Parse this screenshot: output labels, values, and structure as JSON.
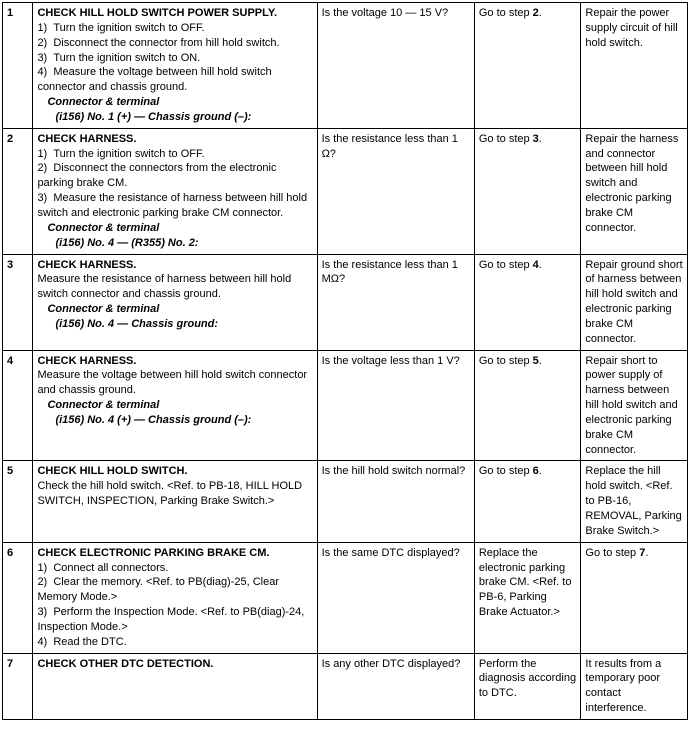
{
  "rows": [
    {
      "num": "1",
      "title": "CHECK HILL HOLD SWITCH POWER SUPPLY.",
      "steps": [
        "1)  Turn the ignition switch to OFF.",
        "2)  Disconnect the connector from hill hold switch.",
        "3)  Turn the ignition switch to ON.",
        "4)  Measure the voltage between hill hold switch connector and chassis ground."
      ],
      "conn_label": "Connector & terminal",
      "conn_detail": "(i156) No. 1 (+) — Chassis ground (–):",
      "check": "Is the voltage 10 — 15 V?",
      "yes": "Go to step 2.",
      "no": "Repair the power supply circuit of hill hold switch."
    },
    {
      "num": "2",
      "title": "CHECK HARNESS.",
      "steps": [
        "1)  Turn the ignition switch to OFF.",
        "2)  Disconnect the connectors from the electronic parking brake CM.",
        "3)  Measure the resistance of harness between hill hold switch and electronic parking brake CM connector."
      ],
      "conn_label": "Connector & terminal",
      "conn_detail": "(i156) No. 4 — (R355) No. 2:",
      "check": "Is the resistance less than 1 Ω?",
      "yes": "Go to step 3.",
      "no": "Repair the harness and connector between hill hold switch and electronic parking brake CM connector."
    },
    {
      "num": "3",
      "title": "CHECK HARNESS.",
      "steps": [
        "Measure the resistance of harness between hill hold switch connector and chassis ground."
      ],
      "conn_label": "Connector & terminal",
      "conn_detail": "(i156) No. 4 — Chassis ground:",
      "check": "Is the resistance less than 1 MΩ?",
      "yes": "Go to step 4.",
      "no": "Repair ground short of harness between hill hold switch and electronic parking brake CM connector."
    },
    {
      "num": "4",
      "title": "CHECK HARNESS.",
      "steps": [
        "Measure the voltage between hill hold switch connector and chassis ground."
      ],
      "conn_label": "Connector & terminal",
      "conn_detail": "(i156) No. 4 (+) — Chassis ground (–):",
      "check": "Is the voltage less than 1 V?",
      "yes": "Go to step 5.",
      "no": "Repair short to power supply of harness between hill hold switch and electronic parking brake CM connector."
    },
    {
      "num": "5",
      "title": "CHECK HILL HOLD SWITCH.",
      "steps": [
        "Check the hill hold switch. <Ref. to PB-18, HILL HOLD SWITCH, INSPECTION, Parking Brake Switch.>"
      ],
      "conn_label": "",
      "conn_detail": "",
      "check": "Is the hill hold switch normal?",
      "yes": "Go to step 6.",
      "no": "Replace the hill hold switch. <Ref. to PB-16, REMOVAL, Parking Brake Switch.>"
    },
    {
      "num": "6",
      "title": "CHECK ELECTRONIC PARKING BRAKE CM.",
      "steps": [
        "1)  Connect all connectors.",
        "2)  Clear the memory. <Ref. to PB(diag)-25, Clear Memory Mode.>",
        "3)  Perform the Inspection Mode. <Ref. to PB(diag)-24, Inspection Mode.>",
        "4)  Read the DTC."
      ],
      "conn_label": "",
      "conn_detail": "",
      "check": "Is the same DTC displayed?",
      "yes": "Replace the electronic parking brake CM. <Ref. to PB-6, Parking Brake Actuator.>",
      "no": "Go to step 7."
    },
    {
      "num": "7",
      "title": "CHECK OTHER DTC DETECTION.",
      "steps": [],
      "conn_label": "",
      "conn_detail": "",
      "check": "Is any other DTC displayed?",
      "yes": "Perform the diagnosis according to DTC.",
      "no": "It results from a temporary poor contact interference."
    }
  ],
  "yes_emph": {
    "1": "2",
    "2": "3",
    "3": "4",
    "4": "5",
    "5": "6"
  },
  "no_emph": {
    "6": "7"
  }
}
